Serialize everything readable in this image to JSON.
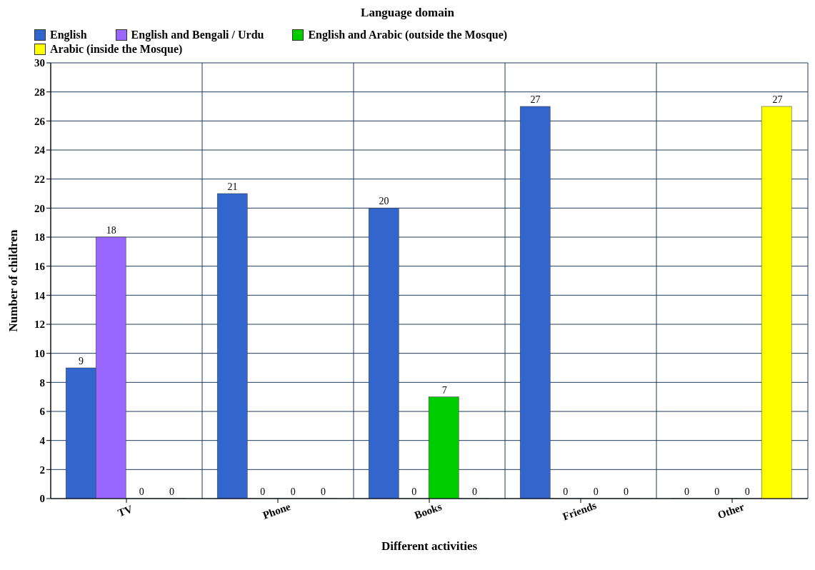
{
  "chart_data": {
    "type": "bar",
    "title": "Language domain",
    "xlabel": "Different activities",
    "ylabel": "Number of children",
    "categories": [
      "TV",
      "Phone",
      "Books",
      "Friends",
      "Other"
    ],
    "series": [
      {
        "name": "English",
        "color": "#3366cc",
        "values": [
          9,
          21,
          20,
          27,
          0
        ]
      },
      {
        "name": "English and Bengali / Urdu",
        "color": "#9966ff",
        "values": [
          18,
          0,
          0,
          0,
          0
        ]
      },
      {
        "name": "English and Arabic (outside the Mosque)",
        "color": "#00cc00",
        "values": [
          0,
          0,
          7,
          0,
          0
        ]
      },
      {
        "name": "Arabic (inside the Mosque)",
        "color": "#ffff00",
        "values": [
          0,
          0,
          0,
          0,
          27
        ]
      }
    ],
    "ylim": [
      0,
      30
    ],
    "yticks": [
      0,
      2,
      4,
      6,
      8,
      10,
      12,
      14,
      16,
      18,
      20,
      22,
      24,
      26,
      28,
      30
    ],
    "grid": true,
    "legend": "top left",
    "data_labels": true
  }
}
